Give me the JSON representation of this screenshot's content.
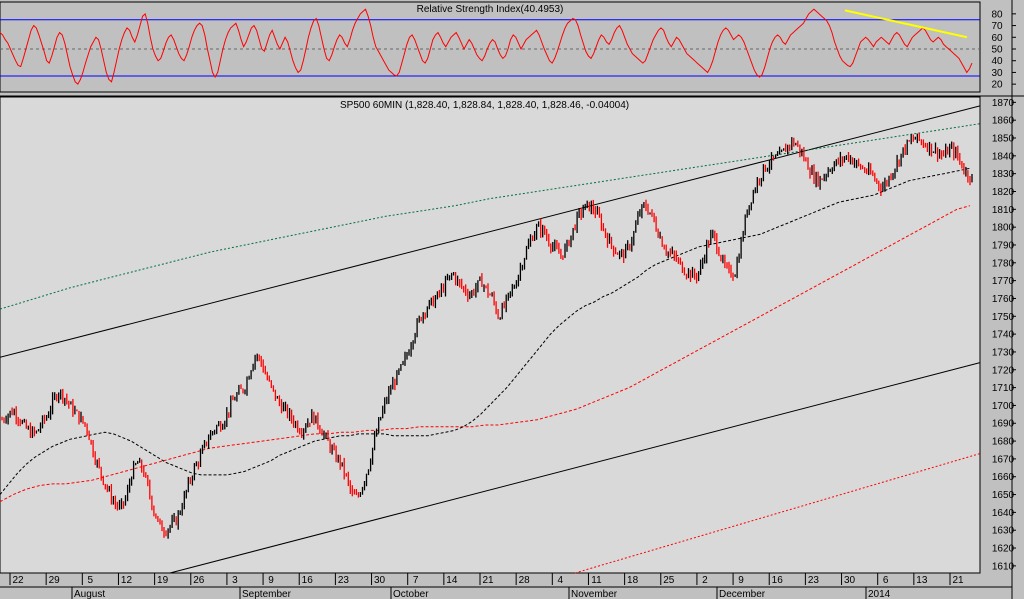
{
  "chart_data": [
    {
      "type": "line",
      "title": "Relative Strength Index(40.4953)",
      "y_ticks": [
        20,
        30,
        40,
        50,
        60,
        70,
        80
      ],
      "ylim": [
        15,
        85
      ],
      "overbought": 75,
      "oversold": 27,
      "midline": 50,
      "trendline": {
        "from_bar": 845,
        "from_value": 83,
        "to_bar": 967,
        "to_value": 60
      },
      "series": [
        {
          "values": [
            64,
            62,
            58,
            55,
            50,
            45,
            40,
            36,
            35,
            42,
            50,
            58,
            66,
            70,
            68,
            62,
            55,
            48,
            40,
            38,
            44,
            52,
            60,
            64,
            62,
            55,
            45,
            35,
            28,
            22,
            20,
            24,
            30,
            38,
            45,
            52,
            56,
            60,
            58,
            50,
            40,
            30,
            24,
            22,
            30,
            40,
            50,
            58,
            64,
            68,
            66,
            60,
            56,
            62,
            70,
            78,
            80,
            72,
            60,
            50,
            44,
            40,
            42,
            48,
            55,
            60,
            62,
            58,
            52,
            46,
            42,
            40,
            45,
            52,
            60,
            66,
            70,
            72,
            70,
            62,
            50,
            40,
            30,
            26,
            30,
            40,
            50,
            58,
            64,
            68,
            70,
            72,
            66,
            58,
            52,
            56,
            62,
            68,
            70,
            66,
            58,
            50,
            48,
            55,
            62,
            66,
            60,
            54,
            50,
            55,
            60,
            56,
            48,
            40,
            34,
            30,
            32,
            40,
            50,
            60,
            68,
            74,
            76,
            70,
            60,
            50,
            42,
            40,
            45,
            52,
            58,
            62,
            60,
            55,
            52,
            58,
            66,
            72,
            76,
            80,
            82,
            84,
            78,
            70,
            60,
            52,
            48,
            44,
            40,
            36,
            32,
            30,
            28,
            27,
            30,
            38,
            46,
            54,
            60,
            62,
            58,
            52,
            46,
            40,
            38,
            42,
            50,
            58,
            62,
            64,
            60,
            55,
            52,
            56,
            60,
            62,
            64,
            60,
            55,
            50,
            54,
            58,
            55,
            50,
            45,
            42,
            40,
            44,
            50,
            55,
            58,
            56,
            50,
            45,
            42,
            44,
            50,
            58,
            62,
            60,
            55,
            50,
            54,
            58,
            60,
            62,
            64,
            66,
            62,
            56,
            50,
            45,
            40,
            38,
            42,
            48,
            55,
            62,
            68,
            72,
            74,
            76,
            75,
            70,
            62,
            55,
            48,
            44,
            42,
            46,
            52,
            58,
            62,
            60,
            56,
            54,
            58,
            64,
            68,
            70,
            66,
            60,
            54,
            50,
            46,
            44,
            42,
            40,
            38,
            40,
            46,
            52,
            58,
            62,
            66,
            68,
            66,
            60,
            55,
            52,
            56,
            60,
            58,
            54,
            50,
            46,
            44,
            42,
            40,
            38,
            36,
            34,
            32,
            30,
            34,
            40,
            48,
            56,
            62,
            66,
            68,
            66,
            62,
            58,
            60,
            62,
            60,
            56,
            50,
            44,
            38,
            32,
            28,
            26,
            28,
            34,
            42,
            50,
            56,
            60,
            62,
            60,
            56,
            54,
            58,
            62,
            64,
            66,
            68,
            70,
            72,
            76,
            80,
            82,
            84,
            82,
            80,
            78,
            76,
            74,
            70,
            64,
            56,
            50,
            44,
            40,
            38,
            36,
            35,
            38,
            44,
            50,
            56,
            58,
            60,
            58,
            55,
            52,
            56,
            58,
            60,
            58,
            56,
            54,
            58,
            62,
            64,
            62,
            58,
            54,
            52,
            56,
            60,
            62,
            64,
            66,
            68,
            66,
            62,
            58,
            56,
            58,
            60,
            58,
            54,
            52,
            50,
            48,
            46,
            44,
            42,
            38,
            34,
            30,
            33,
            38
          ]
        }
      ]
    },
    {
      "type": "line",
      "title": "SP500 60MIN (1,828.40, 1,828.84, 1,828.40, 1,828.46, -0.04004)",
      "y_ticks": [
        1610,
        1620,
        1630,
        1640,
        1650,
        1660,
        1670,
        1680,
        1690,
        1700,
        1710,
        1720,
        1730,
        1740,
        1750,
        1760,
        1770,
        1780,
        1790,
        1800,
        1810,
        1820,
        1830,
        1840,
        1850,
        1860,
        1870
      ],
      "ylim": [
        1606,
        1873
      ],
      "price": [
        1692,
        1695,
        1697,
        1693,
        1688,
        1685,
        1684,
        1690,
        1694,
        1702,
        1708,
        1705,
        1700,
        1696,
        1692,
        1688,
        1676,
        1666,
        1658,
        1651,
        1645,
        1642,
        1648,
        1662,
        1668,
        1664,
        1652,
        1640,
        1632,
        1630,
        1633,
        1636,
        1645,
        1655,
        1664,
        1670,
        1678,
        1684,
        1688,
        1690,
        1696,
        1703,
        1707,
        1710,
        1720,
        1729,
        1724,
        1715,
        1708,
        1702,
        1698,
        1694,
        1690,
        1686,
        1690,
        1694,
        1690,
        1684,
        1678,
        1672,
        1668,
        1660,
        1650,
        1648,
        1656,
        1666,
        1680,
        1692,
        1702,
        1710,
        1716,
        1722,
        1730,
        1740,
        1748,
        1754,
        1757,
        1760,
        1765,
        1770,
        1774,
        1768,
        1765,
        1762,
        1766,
        1770,
        1764,
        1760,
        1750,
        1755,
        1762,
        1768,
        1778,
        1787,
        1795,
        1800,
        1798,
        1792,
        1788,
        1784,
        1788,
        1796,
        1805,
        1810,
        1812,
        1810,
        1804,
        1796,
        1790,
        1786,
        1784,
        1788,
        1796,
        1808,
        1812,
        1808,
        1800,
        1792,
        1786,
        1784,
        1780,
        1776,
        1774,
        1772,
        1778,
        1790,
        1796,
        1788,
        1778,
        1774,
        1775,
        1790,
        1808,
        1818,
        1826,
        1832,
        1836,
        1838,
        1840,
        1844,
        1848,
        1846,
        1840,
        1834,
        1828,
        1826,
        1830,
        1834,
        1836,
        1838,
        1840,
        1837,
        1834,
        1832,
        1830,
        1826,
        1822,
        1826,
        1832,
        1838,
        1844,
        1848,
        1850,
        1848,
        1846,
        1844,
        1842,
        1840,
        1844,
        1842,
        1836,
        1830,
        1828
      ],
      "sma_black": [
        1650,
        1656,
        1662,
        1667,
        1671,
        1674,
        1677,
        1679,
        1681,
        1682,
        1683,
        1684,
        1685,
        1684,
        1682,
        1680,
        1677,
        1674,
        1671,
        1668,
        1666,
        1664,
        1662,
        1661,
        1661,
        1661,
        1661,
        1662,
        1663,
        1665,
        1667,
        1669,
        1672,
        1674,
        1676,
        1678,
        1680,
        1681,
        1682,
        1683,
        1683,
        1684,
        1684,
        1684,
        1684,
        1683,
        1683,
        1683,
        1683,
        1683,
        1684,
        1685,
        1686,
        1688,
        1691,
        1695,
        1700,
        1705,
        1710,
        1716,
        1722,
        1728,
        1734,
        1740,
        1745,
        1749,
        1753,
        1756,
        1758,
        1761,
        1763,
        1766,
        1769,
        1772,
        1776,
        1779,
        1781,
        1783,
        1785,
        1787,
        1789,
        1790,
        1791,
        1792,
        1793,
        1794,
        1795,
        1796,
        1798,
        1800,
        1802,
        1804,
        1806,
        1808,
        1810,
        1812,
        1814,
        1815,
        1816,
        1817,
        1818,
        1820,
        1822,
        1824,
        1826,
        1827,
        1828,
        1829,
        1830,
        1831,
        1832,
        1833
      ],
      "sma_red": [
        1646,
        1650,
        1653,
        1655,
        1656,
        1656,
        1657,
        1658,
        1660,
        1662,
        1664,
        1666,
        1668,
        1670,
        1672,
        1674,
        1676,
        1677,
        1678,
        1679,
        1680,
        1681,
        1682,
        1683,
        1684,
        1684,
        1685,
        1685,
        1686,
        1686,
        1687,
        1687,
        1688,
        1688,
        1688,
        1688,
        1688,
        1689,
        1689,
        1690,
        1691,
        1692,
        1694,
        1696,
        1698,
        1701,
        1704,
        1707,
        1710,
        1714,
        1718,
        1722,
        1726,
        1730,
        1734,
        1738,
        1742,
        1746,
        1750,
        1754,
        1758,
        1762,
        1766,
        1770,
        1774,
        1778,
        1782,
        1786,
        1790,
        1794,
        1798,
        1802,
        1806,
        1810,
        1812
      ],
      "sma_green": [
        1754,
        1760,
        1766,
        1771,
        1776,
        1781,
        1786,
        1790,
        1794,
        1798,
        1802,
        1806,
        1809,
        1812,
        1816,
        1819,
        1822,
        1825,
        1828,
        1831,
        1834,
        1837,
        1840,
        1843,
        1846,
        1849,
        1852,
        1855,
        1858
      ],
      "channel_upper": {
        "start": 1727,
        "end": 1868
      },
      "channel_lower": {
        "start": 1606,
        "end": 1724
      },
      "dotted_red": {
        "start": 1606,
        "end": 1673
      },
      "x_ticks": [
        "22",
        "29",
        "5",
        "12",
        "19",
        "26",
        "3",
        "9",
        "16",
        "23",
        "30",
        "7",
        "14",
        "21",
        "28",
        "4",
        "11",
        "18",
        "25",
        "2",
        "9",
        "16",
        "23",
        "30",
        "6",
        "13",
        "21"
      ],
      "months": [
        "August",
        "September",
        "October",
        "November",
        "December",
        "2014"
      ]
    }
  ]
}
